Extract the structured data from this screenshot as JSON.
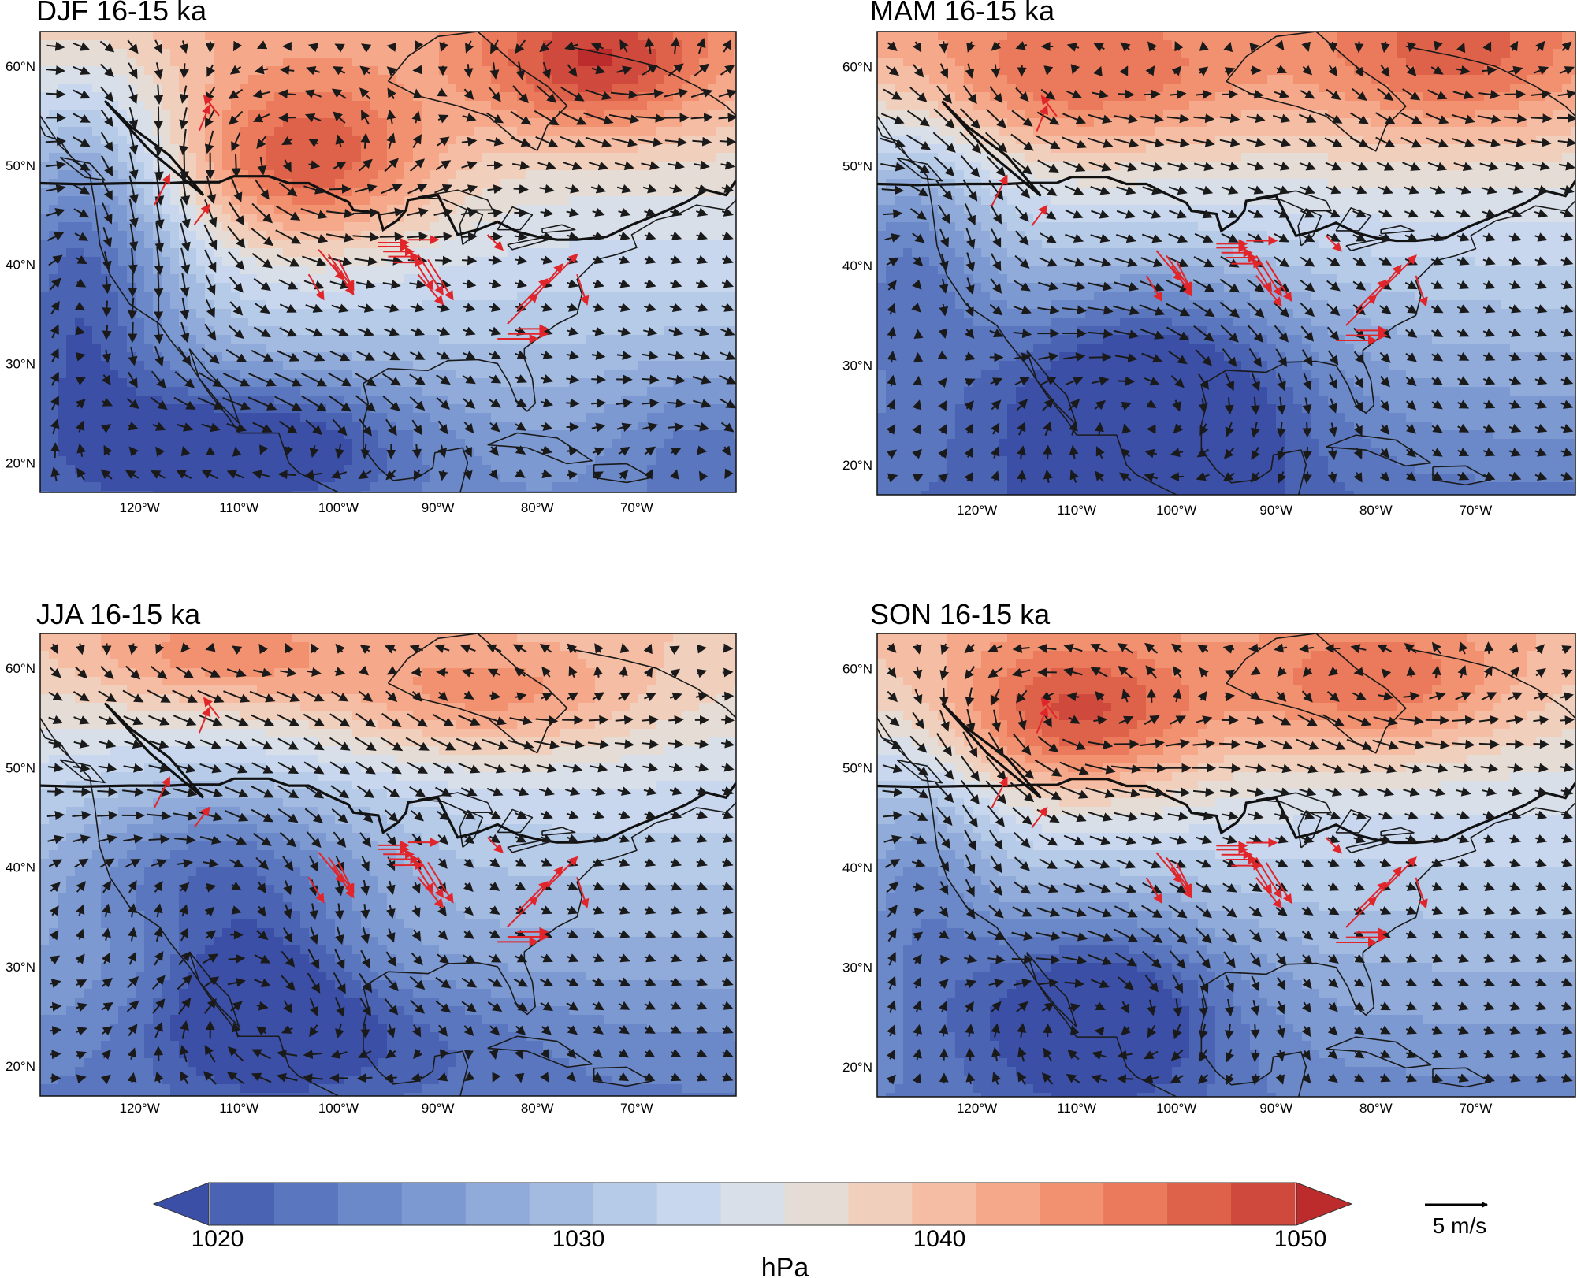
{
  "panels": [
    {
      "title": "DJF 16-15 ka",
      "season": "DJF"
    },
    {
      "title": "MAM 16-15 ka",
      "season": "MAM"
    },
    {
      "title": "JJA 16-15 ka",
      "season": "JJA"
    },
    {
      "title": "SON 16-15 ka",
      "season": "SON"
    }
  ],
  "lon_ticks": [
    "120°W",
    "110°W",
    "100°W",
    "90°W",
    "80°W",
    "70°W"
  ],
  "lat_ticks": [
    "60°N",
    "50°N",
    "40°N",
    "30°N",
    "20°N"
  ],
  "map_extent": {
    "lon": [
      -130,
      -60
    ],
    "lat": [
      17,
      63.5
    ]
  },
  "colorbar": {
    "label": "hPa",
    "tick_labels": [
      "1020",
      "1030",
      "1040",
      "1050"
    ],
    "range": [
      1020,
      1050
    ],
    "colors": [
      "#3b4fa6",
      "#4a63b2",
      "#5a76be",
      "#6b88c8",
      "#7d99d1",
      "#90aad9",
      "#a3bbe1",
      "#b6cbe8",
      "#c8d7ee",
      "#d8dfe8",
      "#e5ddd5",
      "#f0cfbd",
      "#f5bda3",
      "#f6a88a",
      "#f29170",
      "#ea7a5b",
      "#de624a",
      "#cf4a3d",
      "#bc2c2c"
    ]
  },
  "reference_vector": {
    "label": "5 m/s"
  },
  "colors": {
    "arrow_black": "#1a1a1a",
    "arrow_red": "#e0262a",
    "coast": "#1a1a1a"
  }
}
